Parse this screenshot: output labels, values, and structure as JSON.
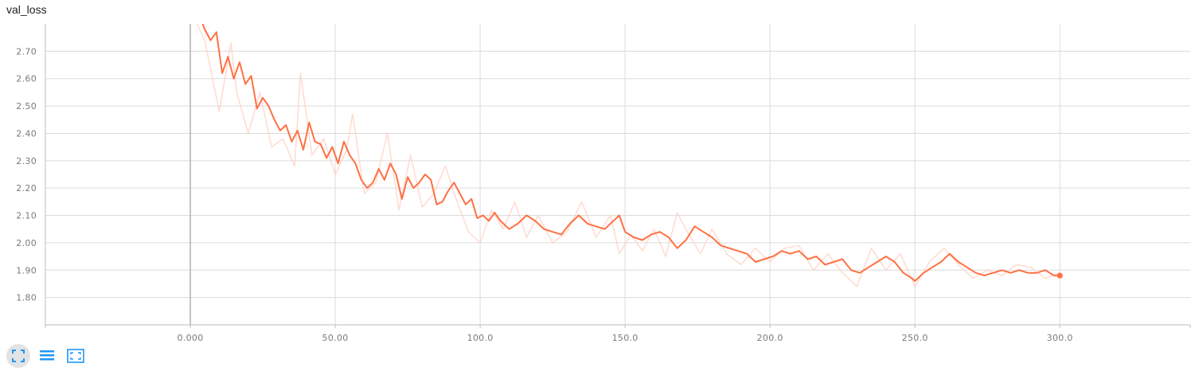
{
  "toolbar": {
    "buttons": [
      {
        "icon": "fit-domain-icon"
      },
      {
        "icon": "toggle-log-scale-icon"
      },
      {
        "icon": "expand-chart-icon"
      }
    ],
    "color": "#2196f3"
  },
  "chart_data": {
    "type": "line",
    "title": "val_loss",
    "xlabel": "",
    "ylabel": "",
    "xlim": [
      -50,
      345
    ],
    "ylim": [
      1.7,
      2.8
    ],
    "xticks": [
      0,
      50,
      100,
      150,
      200,
      250,
      300
    ],
    "xtick_labels": [
      "0.000",
      "50.00",
      "100.0",
      "150.0",
      "200.0",
      "250.0",
      "300.0"
    ],
    "yticks": [
      1.8,
      1.9,
      2.0,
      2.1,
      2.2,
      2.3,
      2.4,
      2.5,
      2.6,
      2.7
    ],
    "ytick_labels": [
      "1.80",
      "1.90",
      "2.00",
      "2.10",
      "2.20",
      "2.30",
      "2.40",
      "2.50",
      "2.60",
      "2.70"
    ],
    "grid": true,
    "series": [
      {
        "role": "raw",
        "color": "#ffccbc",
        "x": [
          0,
          5,
          10,
          14,
          16,
          20,
          24,
          28,
          32,
          36,
          38,
          42,
          46,
          50,
          54,
          56,
          60,
          64,
          68,
          72,
          76,
          80,
          84,
          88,
          92,
          96,
          100,
          104,
          108,
          112,
          116,
          120,
          125,
          130,
          135,
          140,
          145,
          148,
          152,
          156,
          160,
          164,
          168,
          172,
          176,
          180,
          185,
          190,
          195,
          200,
          205,
          210,
          215,
          220,
          225,
          230,
          235,
          240,
          245,
          250,
          255,
          260,
          265,
          270,
          275,
          280,
          285,
          290,
          295,
          300
        ],
        "y": [
          2.85,
          2.74,
          2.48,
          2.73,
          2.55,
          2.4,
          2.55,
          2.35,
          2.38,
          2.28,
          2.62,
          2.32,
          2.38,
          2.25,
          2.34,
          2.47,
          2.18,
          2.22,
          2.4,
          2.12,
          2.32,
          2.13,
          2.18,
          2.28,
          2.15,
          2.04,
          2.0,
          2.12,
          2.05,
          2.15,
          2.02,
          2.1,
          2.0,
          2.04,
          2.15,
          2.02,
          2.1,
          1.96,
          2.03,
          1.97,
          2.05,
          1.95,
          2.11,
          2.03,
          1.96,
          2.05,
          1.96,
          1.92,
          1.98,
          1.93,
          1.98,
          1.99,
          1.9,
          1.96,
          1.89,
          1.84,
          1.98,
          1.9,
          1.96,
          1.84,
          1.93,
          1.98,
          1.92,
          1.87,
          1.9,
          1.88,
          1.92,
          1.91,
          1.87,
          1.89
        ]
      },
      {
        "role": "smoothed",
        "color": "#ff7043",
        "x": [
          0,
          5,
          7,
          9,
          11,
          13,
          15,
          17,
          19,
          21,
          23,
          25,
          27,
          29,
          31,
          33,
          35,
          37,
          39,
          41,
          43,
          45,
          47,
          49,
          51,
          53,
          55,
          57,
          59,
          61,
          63,
          65,
          67,
          69,
          71,
          73,
          75,
          77,
          79,
          81,
          83,
          85,
          87,
          89,
          91,
          93,
          95,
          97,
          99,
          101,
          103,
          105,
          107,
          110,
          113,
          116,
          119,
          122,
          125,
          128,
          131,
          134,
          137,
          140,
          143,
          146,
          148,
          150,
          153,
          156,
          159,
          162,
          165,
          168,
          171,
          174,
          177,
          180,
          183,
          186,
          189,
          192,
          195,
          198,
          201,
          204,
          207,
          210,
          213,
          216,
          219,
          222,
          225,
          228,
          231,
          234,
          237,
          240,
          243,
          246,
          249,
          250,
          253,
          256,
          259,
          262,
          265,
          268,
          271,
          274,
          277,
          280,
          283,
          286,
          289,
          292,
          295,
          298,
          300
        ],
        "y": [
          2.92,
          2.78,
          2.74,
          2.77,
          2.62,
          2.68,
          2.6,
          2.66,
          2.58,
          2.61,
          2.49,
          2.53,
          2.5,
          2.45,
          2.41,
          2.43,
          2.37,
          2.41,
          2.34,
          2.44,
          2.37,
          2.36,
          2.31,
          2.35,
          2.29,
          2.37,
          2.32,
          2.29,
          2.23,
          2.2,
          2.22,
          2.27,
          2.23,
          2.29,
          2.25,
          2.16,
          2.24,
          2.2,
          2.22,
          2.25,
          2.23,
          2.14,
          2.15,
          2.19,
          2.22,
          2.18,
          2.14,
          2.16,
          2.09,
          2.1,
          2.08,
          2.11,
          2.08,
          2.05,
          2.07,
          2.1,
          2.08,
          2.05,
          2.04,
          2.03,
          2.07,
          2.1,
          2.07,
          2.06,
          2.05,
          2.08,
          2.1,
          2.04,
          2.02,
          2.01,
          2.03,
          2.04,
          2.02,
          1.98,
          2.01,
          2.06,
          2.04,
          2.02,
          1.99,
          1.98,
          1.97,
          1.96,
          1.93,
          1.94,
          1.95,
          1.97,
          1.96,
          1.97,
          1.94,
          1.95,
          1.92,
          1.93,
          1.94,
          1.9,
          1.89,
          1.91,
          1.93,
          1.95,
          1.93,
          1.89,
          1.87,
          1.86,
          1.89,
          1.91,
          1.93,
          1.96,
          1.93,
          1.91,
          1.89,
          1.88,
          1.89,
          1.9,
          1.89,
          1.9,
          1.89,
          1.89,
          1.9,
          1.88,
          1.88
        ]
      }
    ]
  }
}
